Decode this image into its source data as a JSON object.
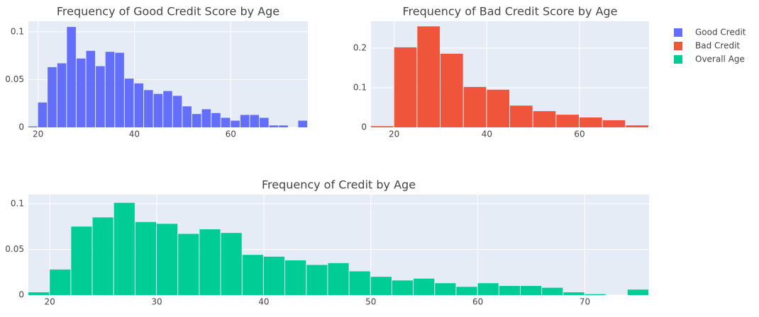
{
  "chart_data": [
    {
      "type": "histogram",
      "title": "Frequency of Good Credit Score by Age",
      "bins": [
        18,
        20,
        22,
        24,
        26,
        28,
        30,
        32,
        34,
        36,
        38,
        40,
        42,
        44,
        46,
        48,
        50,
        52,
        54,
        56,
        58,
        60,
        62,
        64,
        66,
        68,
        70,
        72,
        74,
        76
      ],
      "series": [
        {
          "name": "Good Credit",
          "color": "#636efa",
          "values": [
            0.001,
            0.026,
            0.063,
            0.067,
            0.105,
            0.072,
            0.08,
            0.064,
            0.079,
            0.078,
            0.051,
            0.046,
            0.039,
            0.035,
            0.038,
            0.033,
            0.022,
            0.014,
            0.019,
            0.015,
            0.01,
            0.007,
            0.013,
            0.013,
            0.01,
            0.002,
            0.002,
            0,
            0.007
          ]
        }
      ],
      "xlim": [
        18,
        76
      ],
      "xticks": [
        20,
        40,
        60
      ],
      "ylim": [
        0,
        0.111
      ],
      "yticks": [
        0,
        0.05,
        0.1
      ],
      "grid": true
    },
    {
      "type": "histogram",
      "title": "Frequency of Bad Credit Score by Age",
      "bins": [
        15,
        20,
        25,
        30,
        35,
        40,
        45,
        50,
        55,
        60,
        65,
        70,
        75
      ],
      "series": [
        {
          "name": "Bad Credit",
          "color": "#ef553b",
          "values": [
            0.003,
            0.202,
            0.255,
            0.186,
            0.102,
            0.095,
            0.055,
            0.041,
            0.032,
            0.025,
            0.018,
            0.005
          ]
        }
      ],
      "xlim": [
        15,
        75
      ],
      "xticks": [
        20,
        40,
        60
      ],
      "ylim": [
        0,
        0.268
      ],
      "yticks": [
        0,
        0.1,
        0.2
      ],
      "grid": true
    },
    {
      "type": "histogram",
      "title": "Frequency of Credit by Age",
      "bins": [
        18,
        20,
        22,
        24,
        26,
        28,
        30,
        32,
        34,
        36,
        38,
        40,
        42,
        44,
        46,
        48,
        50,
        52,
        54,
        56,
        58,
        60,
        62,
        64,
        66,
        68,
        70,
        72,
        74,
        76
      ],
      "series": [
        {
          "name": "Overall Age",
          "color": "#00cc96",
          "values": [
            0.003,
            0.028,
            0.075,
            0.085,
            0.101,
            0.08,
            0.078,
            0.067,
            0.072,
            0.068,
            0.044,
            0.042,
            0.038,
            0.033,
            0.035,
            0.026,
            0.02,
            0.016,
            0.018,
            0.013,
            0.009,
            0.013,
            0.01,
            0.01,
            0.008,
            0.003,
            0.001,
            0,
            0.006
          ]
        }
      ],
      "xlim": [
        18,
        76
      ],
      "xticks": [
        20,
        30,
        40,
        50,
        60,
        70
      ],
      "ylim": [
        0,
        0.11
      ],
      "yticks": [
        0,
        0.05,
        0.1
      ],
      "grid": true
    }
  ]
}
